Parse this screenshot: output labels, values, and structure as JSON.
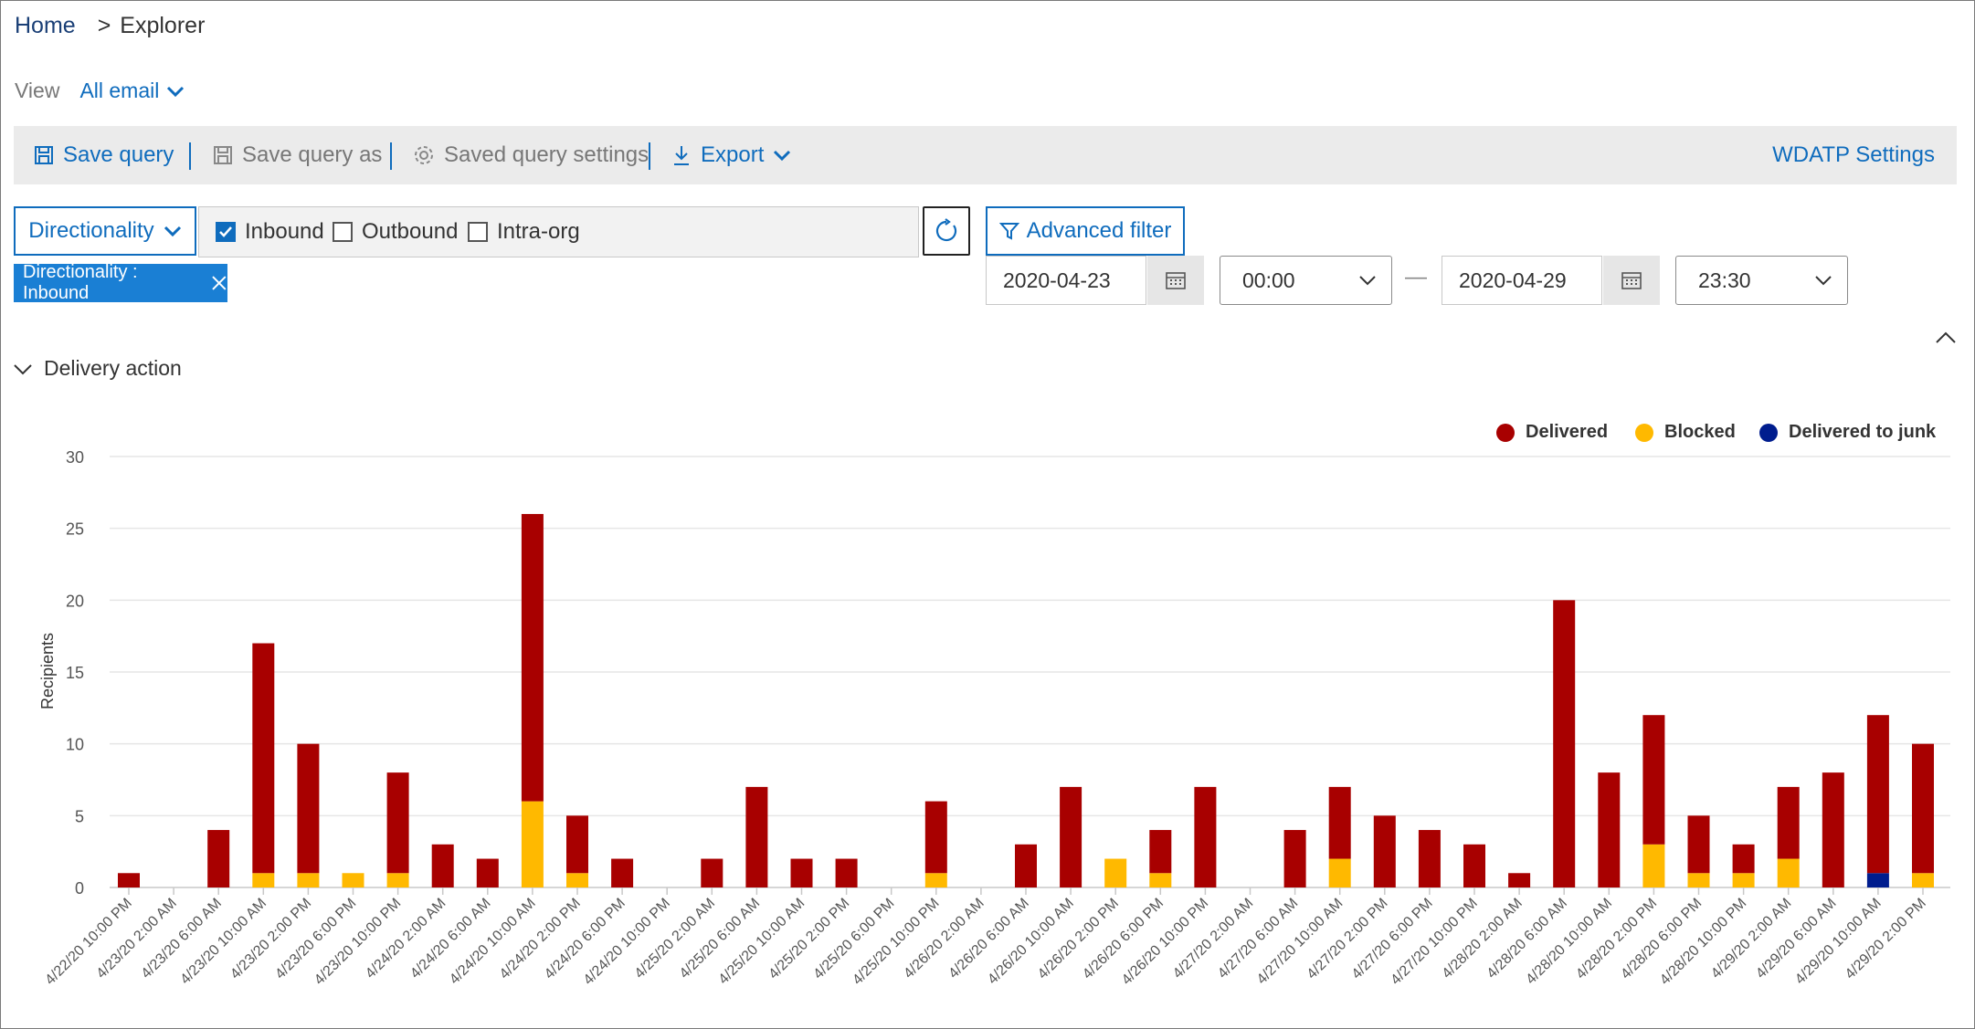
{
  "breadcrumb": {
    "home": "Home",
    "separator": ">",
    "current": "Explorer"
  },
  "view": {
    "label": "View",
    "value": "All email"
  },
  "toolbar": {
    "save_query": "Save query",
    "save_query_as": "Save query as",
    "saved_query_settings": "Saved query settings",
    "export": "Export",
    "wdatp_settings": "WDATP Settings"
  },
  "filters": {
    "directionality_label": "Directionality",
    "checkboxes": [
      {
        "label": "Inbound",
        "checked": true
      },
      {
        "label": "Outbound",
        "checked": false
      },
      {
        "label": "Intra-org",
        "checked": false
      }
    ],
    "advanced_filter": "Advanced filter",
    "chip": "Directionality : Inbound",
    "start_date": "2020-04-23",
    "start_time": "00:00",
    "range_separator": "—",
    "end_date": "2020-04-29",
    "end_time": "23:30"
  },
  "section": {
    "title": "Delivery action"
  },
  "colors": {
    "delivered": "#a80000",
    "blocked": "#ffb900",
    "junk": "#001d8e",
    "accent": "#0f6cbd"
  },
  "chart_data": {
    "type": "bar",
    "stacked": true,
    "ylabel": "Recipients",
    "ylim": [
      0,
      30
    ],
    "yticks": [
      0,
      5,
      10,
      15,
      20,
      25,
      30
    ],
    "legend_position": "top-right",
    "categories": [
      "4/22/20 10:00 PM",
      "4/23/20 2:00 AM",
      "4/23/20 6:00 AM",
      "4/23/20 10:00 AM",
      "4/23/20 2:00 PM",
      "4/23/20 6:00 PM",
      "4/23/20 10:00 PM",
      "4/24/20 2:00 AM",
      "4/24/20 6:00 AM",
      "4/24/20 10:00 AM",
      "4/24/20 2:00 PM",
      "4/24/20 6:00 PM",
      "4/24/20 10:00 PM",
      "4/25/20 2:00 AM",
      "4/25/20 6:00 AM",
      "4/25/20 10:00 AM",
      "4/25/20 2:00 PM",
      "4/25/20 6:00 PM",
      "4/25/20 10:00 PM",
      "4/26/20 2:00 AM",
      "4/26/20 6:00 AM",
      "4/26/20 10:00 AM",
      "4/26/20 2:00 PM",
      "4/26/20 6:00 PM",
      "4/26/20 10:00 PM",
      "4/27/20 2:00 AM",
      "4/27/20 6:00 AM",
      "4/27/20 10:00 AM",
      "4/27/20 2:00 PM",
      "4/27/20 6:00 PM",
      "4/27/20 10:00 PM",
      "4/28/20 2:00 AM",
      "4/28/20 6:00 AM",
      "4/28/20 10:00 AM",
      "4/28/20 2:00 PM",
      "4/28/20 6:00 PM",
      "4/28/20 10:00 PM",
      "4/29/20 2:00 AM",
      "4/29/20 6:00 AM",
      "4/29/20 10:00 AM",
      "4/29/20 2:00 PM"
    ],
    "series": [
      {
        "name": "Delivered",
        "color": "#a80000",
        "values": [
          1,
          0,
          4,
          16,
          9,
          0,
          7,
          3,
          2,
          20,
          4,
          2,
          0,
          2,
          7,
          2,
          2,
          0,
          5,
          0,
          3,
          7,
          0,
          3,
          7,
          0,
          4,
          5,
          5,
          4,
          3,
          1,
          20,
          8,
          9,
          4,
          2,
          5,
          8,
          11,
          9
        ]
      },
      {
        "name": "Blocked",
        "color": "#ffb900",
        "values": [
          0,
          0,
          0,
          1,
          1,
          1,
          1,
          0,
          0,
          6,
          1,
          0,
          0,
          0,
          0,
          0,
          0,
          0,
          1,
          0,
          0,
          0,
          2,
          1,
          0,
          0,
          0,
          2,
          0,
          0,
          0,
          0,
          0,
          0,
          3,
          1,
          1,
          2,
          0,
          0,
          1
        ]
      },
      {
        "name": "Delivered to junk",
        "color": "#001d8e",
        "values": [
          0,
          0,
          0,
          0,
          0,
          0,
          0,
          0,
          0,
          0,
          0,
          0,
          0,
          0,
          0,
          0,
          0,
          0,
          0,
          0,
          0,
          0,
          0,
          0,
          0,
          0,
          0,
          0,
          0,
          0,
          0,
          0,
          0,
          0,
          0,
          0,
          0,
          0,
          0,
          1,
          0
        ]
      }
    ]
  }
}
